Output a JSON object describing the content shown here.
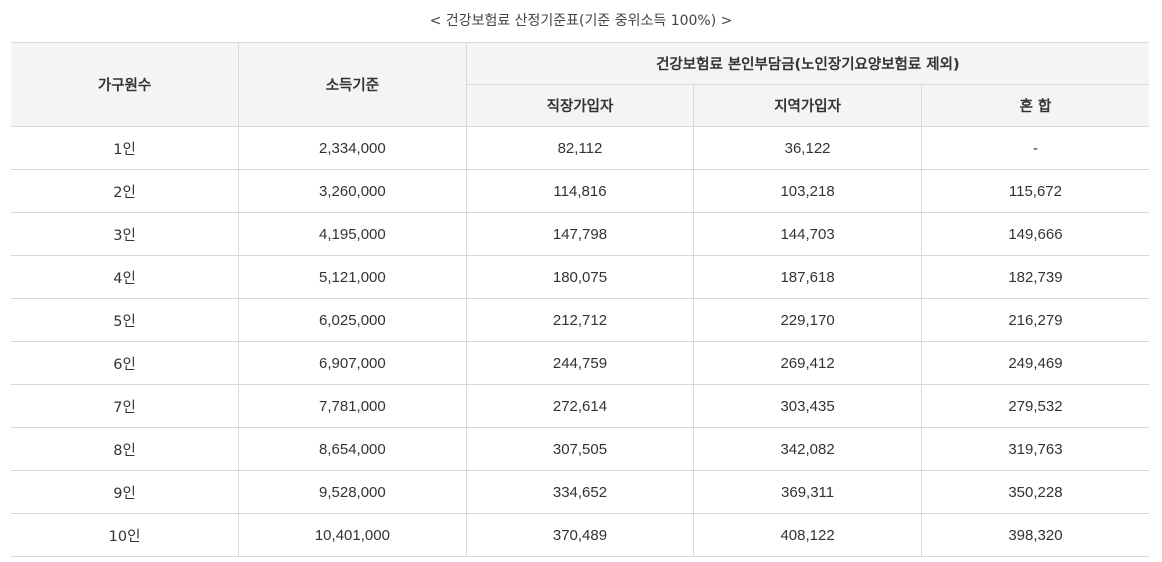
{
  "caption": "< 건강보험료 산정기준표(기준 중위소득 100%) >",
  "headers": {
    "household": "가구원수",
    "income": "소득기준",
    "premium_group": "건강보험료 본인부담금(노인장기요양보험료 제외)",
    "workplace": "직장가입자",
    "regional": "지역가입자",
    "mixed": "혼 합"
  },
  "rows": [
    {
      "household": "1인",
      "income": "2,334,000",
      "workplace": "82,112",
      "regional": "36,122",
      "mixed": "-"
    },
    {
      "household": "2인",
      "income": "3,260,000",
      "workplace": "114,816",
      "regional": "103,218",
      "mixed": "115,672"
    },
    {
      "household": "3인",
      "income": "4,195,000",
      "workplace": "147,798",
      "regional": "144,703",
      "mixed": "149,666"
    },
    {
      "household": "4인",
      "income": "5,121,000",
      "workplace": "180,075",
      "regional": "187,618",
      "mixed": "182,739"
    },
    {
      "household": "5인",
      "income": "6,025,000",
      "workplace": "212,712",
      "regional": "229,170",
      "mixed": "216,279"
    },
    {
      "household": "6인",
      "income": "6,907,000",
      "workplace": "244,759",
      "regional": "269,412",
      "mixed": "249,469"
    },
    {
      "household": "7인",
      "income": "7,781,000",
      "workplace": "272,614",
      "regional": "303,435",
      "mixed": "279,532"
    },
    {
      "household": "8인",
      "income": "8,654,000",
      "workplace": "307,505",
      "regional": "342,082",
      "mixed": "319,763"
    },
    {
      "household": "9인",
      "income": "9,528,000",
      "workplace": "334,652",
      "regional": "369,311",
      "mixed": "350,228"
    },
    {
      "household": "10인",
      "income": "10,401,000",
      "workplace": "370,489",
      "regional": "408,122",
      "mixed": "398,320"
    }
  ]
}
